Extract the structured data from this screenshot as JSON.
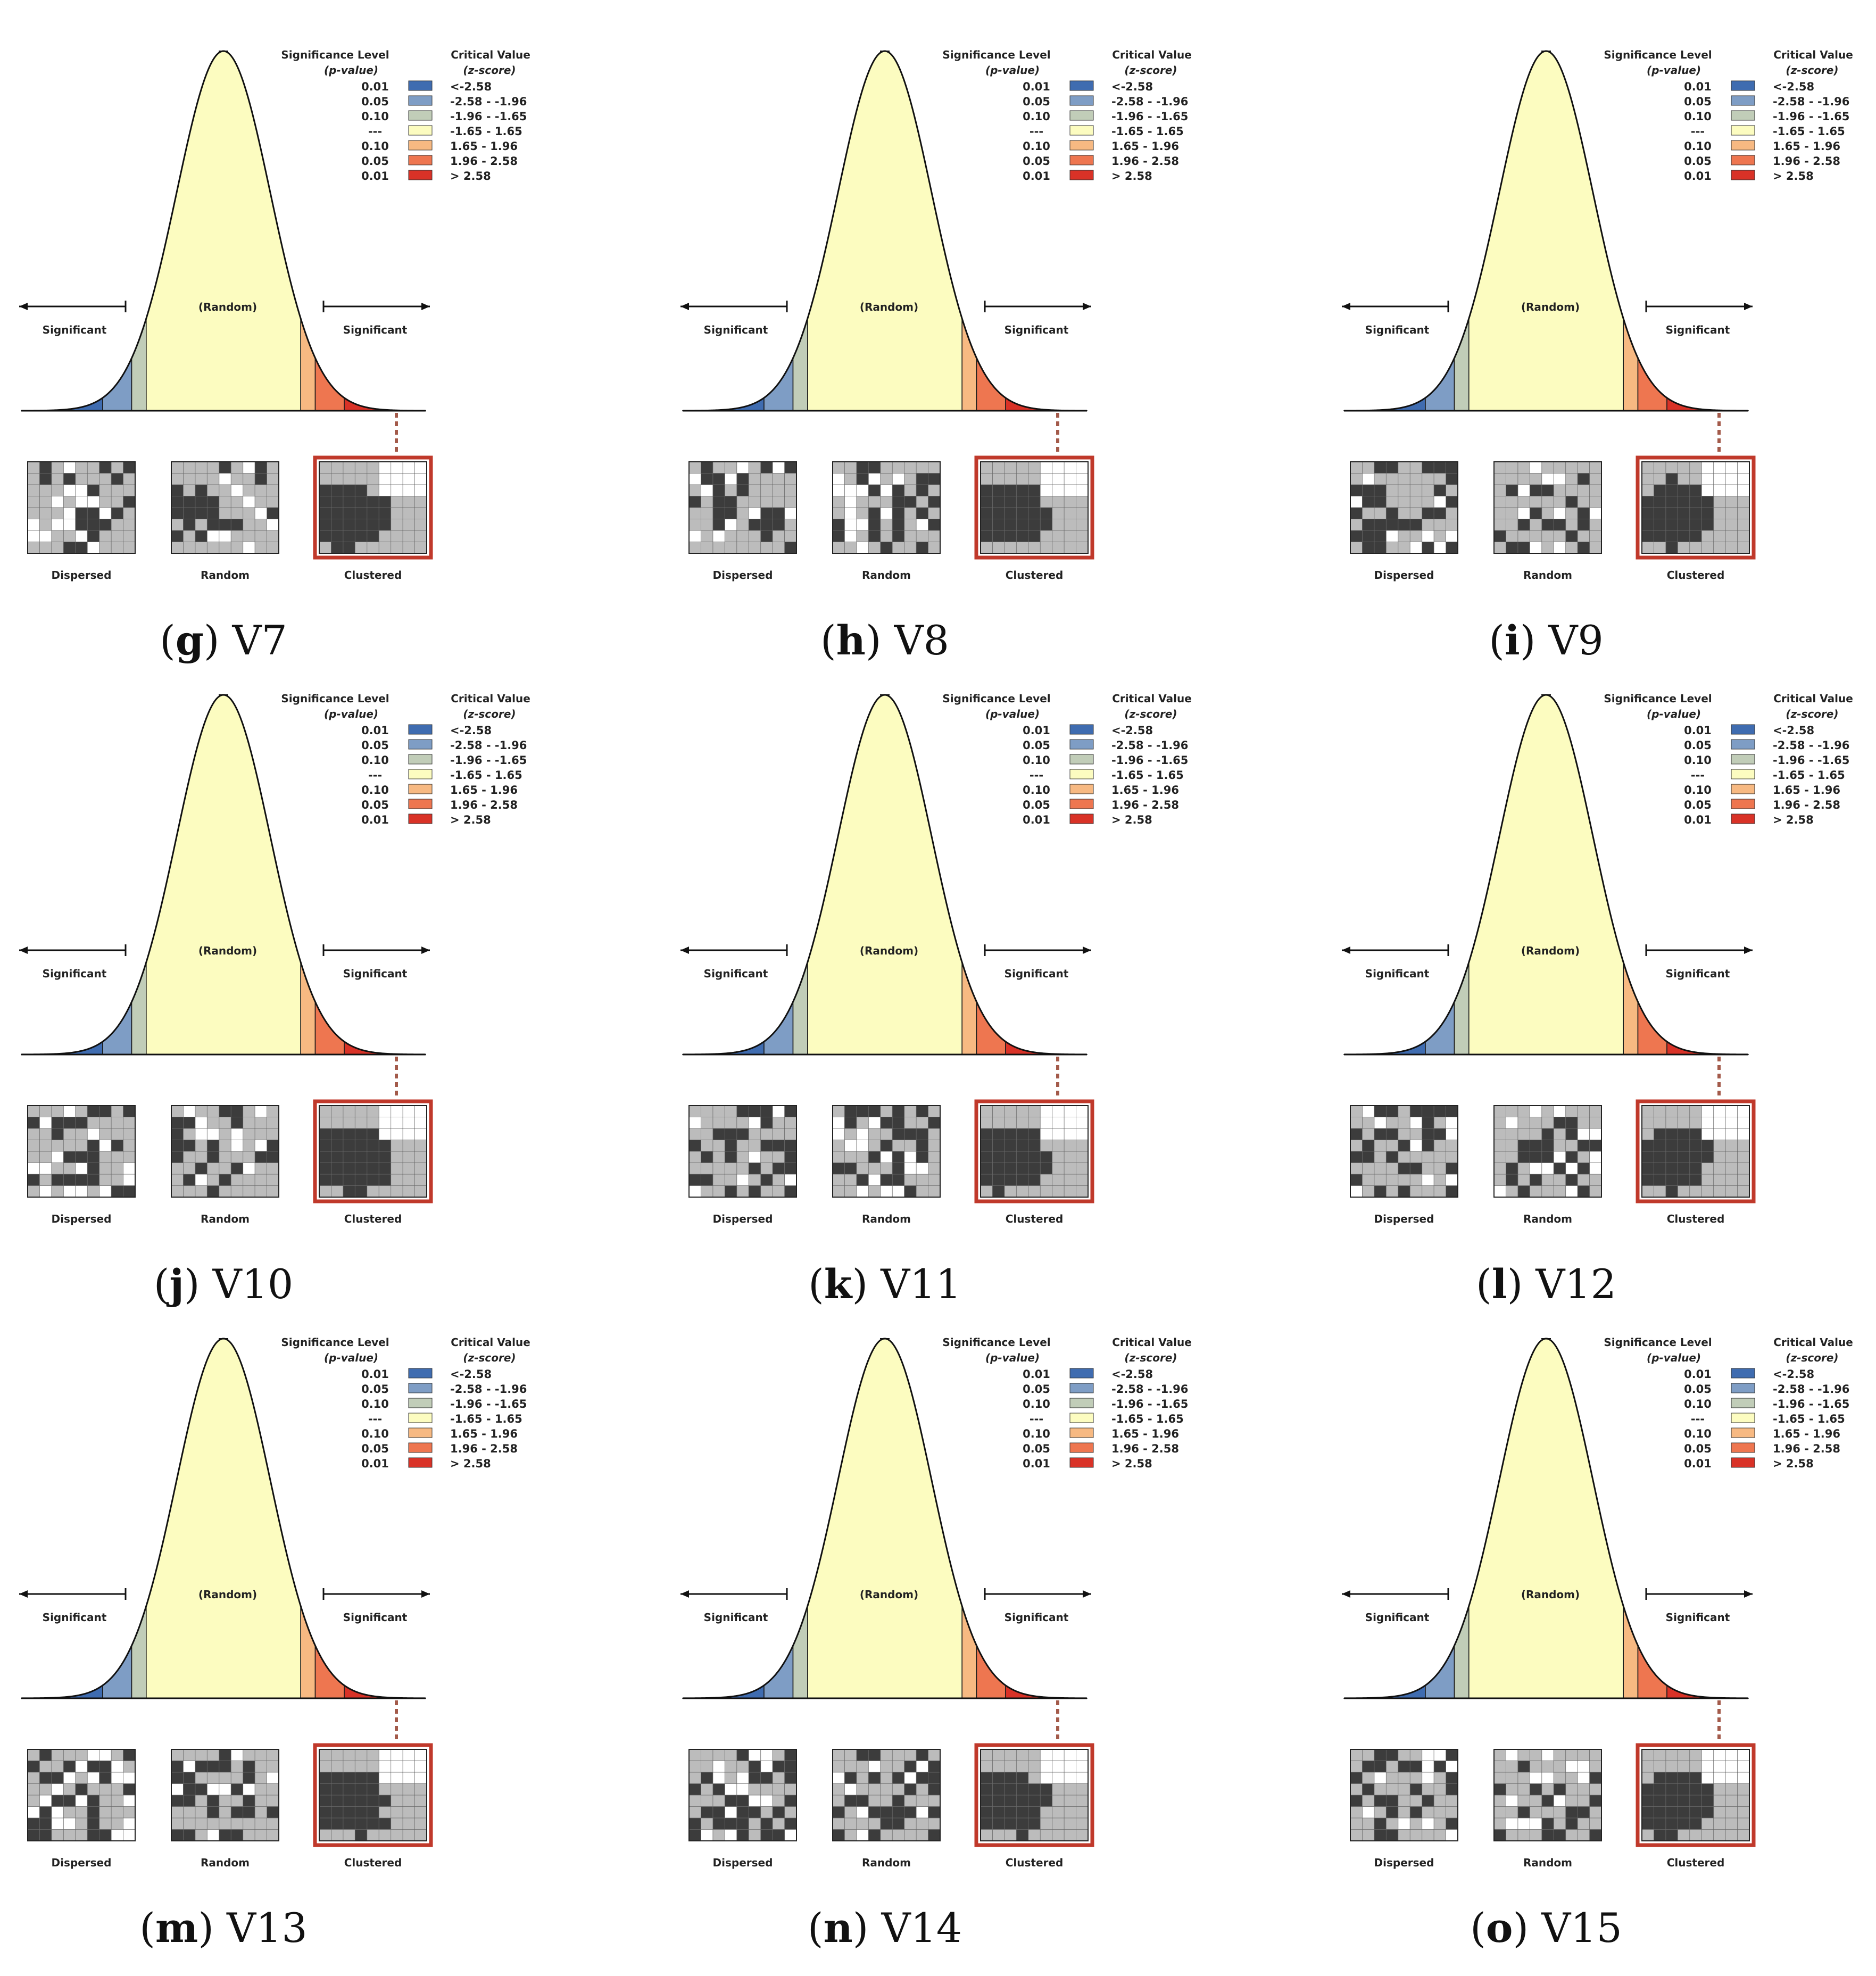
{
  "panel_template": {
    "legend": {
      "header_p": "Significance Level",
      "header_p_sub": "(p-value)",
      "header_z": "Critical Value",
      "header_z_sub": "(z-score)",
      "rows": [
        {
          "p": "0.01",
          "z": "<-2.58",
          "color": "#3f6cb0"
        },
        {
          "p": "0.05",
          "z": "-2.58 - -1.96",
          "color": "#7e9dc5"
        },
        {
          "p": "0.10",
          "z": "-1.96 - -1.65",
          "color": "#c1cdb8"
        },
        {
          "p": "---",
          "z": "-1.65 - 1.65",
          "color": "#fcfcc0"
        },
        {
          "p": "0.10",
          "z": "1.65 - 1.96",
          "color": "#f7b982"
        },
        {
          "p": "0.05",
          "z": "1.96 - 2.58",
          "color": "#ee7650"
        },
        {
          "p": "0.01",
          "z": "> 2.58",
          "color": "#d93227"
        }
      ]
    },
    "curve_labels": {
      "significant_left": "Significant",
      "random": "(Random)",
      "significant_right": "Significant"
    },
    "maps": [
      "Dispersed",
      "Random",
      "Clustered"
    ]
  },
  "panels": [
    {
      "letter": "g",
      "name": "V7"
    },
    {
      "letter": "h",
      "name": "V8"
    },
    {
      "letter": "i",
      "name": "V9"
    },
    {
      "letter": "j",
      "name": "V10"
    },
    {
      "letter": "k",
      "name": "V11"
    },
    {
      "letter": "l",
      "name": "V12"
    },
    {
      "letter": "m",
      "name": "V13"
    },
    {
      "letter": "n",
      "name": "V14"
    },
    {
      "letter": "o",
      "name": "V15"
    }
  ],
  "colors": {
    "curve_fill": "#fcfcc0",
    "map_dark": "#3c3c3c",
    "map_light": "#bcbcbc",
    "map_white": "#ffffff",
    "highlight_border": "#c0392b",
    "leader_line": "#a35a4a"
  }
}
